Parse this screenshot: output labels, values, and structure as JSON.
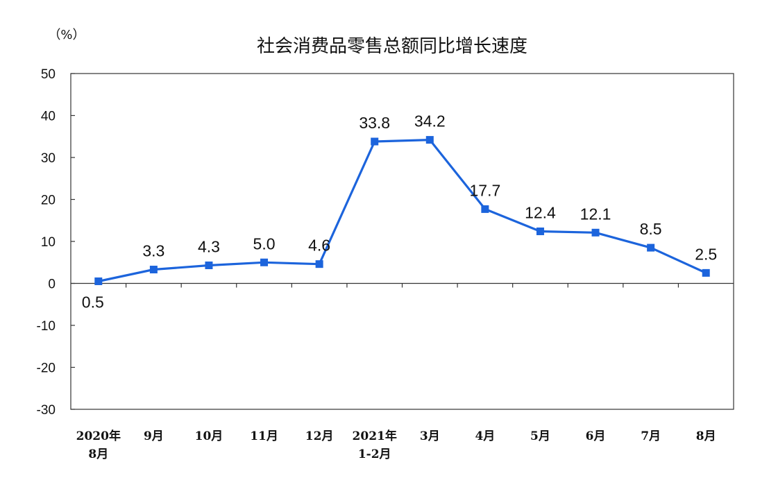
{
  "chart_data": {
    "type": "line",
    "title": "社会消费品零售总额同比增长速度",
    "unit": "（%）",
    "ylim": [
      -30,
      50
    ],
    "yticks": [
      "50",
      "40",
      "30",
      "20",
      "10",
      "0",
      "-10",
      "-20",
      "-30"
    ],
    "categories": [
      [
        "2020年",
        "8月"
      ],
      [
        "9月"
      ],
      [
        "10月"
      ],
      [
        "11月"
      ],
      [
        "12月"
      ],
      [
        "2021年",
        "1-2月"
      ],
      [
        "3月"
      ],
      [
        "4月"
      ],
      [
        "5月"
      ],
      [
        "6月"
      ],
      [
        "7月"
      ],
      [
        "8月"
      ]
    ],
    "values": [
      0.5,
      3.3,
      4.3,
      5.0,
      4.6,
      33.8,
      34.2,
      17.7,
      12.4,
      12.1,
      8.5,
      2.5
    ],
    "value_labels": [
      "0.5",
      "3.3",
      "4.3",
      "5.0",
      "4.6",
      "33.8",
      "34.2",
      "17.7",
      "12.4",
      "12.1",
      "8.5",
      "2.5"
    ],
    "grid": false,
    "line_color": "#1c64dc"
  }
}
